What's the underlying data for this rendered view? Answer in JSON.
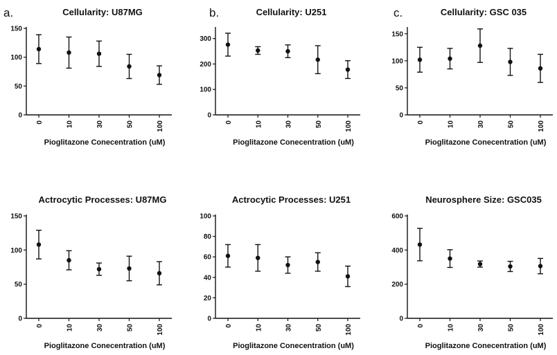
{
  "chart_data": [
    {
      "type": "scatter",
      "panel_label": "a.",
      "title": "Cellularity: U87MG",
      "xlabel": "Pioglitazone Conecentration (uM)",
      "ylabel": "",
      "categories": [
        "0",
        "10",
        "30",
        "50",
        "100"
      ],
      "values": [
        114,
        108,
        106,
        84,
        69
      ],
      "errors": [
        25,
        27,
        22,
        21,
        16
      ],
      "ylim": [
        0,
        150
      ],
      "yticks": [
        0,
        50,
        100,
        150
      ]
    },
    {
      "type": "scatter",
      "panel_label": "b.",
      "title": "Cellularity: U251",
      "xlabel": "Pioglitazone Conecentration (uM)",
      "ylabel": "",
      "categories": [
        "0",
        "10",
        "30",
        "50",
        "100"
      ],
      "values": [
        276,
        253,
        250,
        217,
        178
      ],
      "errors": [
        45,
        15,
        25,
        55,
        35
      ],
      "ylim": [
        0,
        340
      ],
      "yticks": [
        0,
        100,
        200,
        300
      ]
    },
    {
      "type": "scatter",
      "panel_label": "c.",
      "title": "Cellularity: GSC 035",
      "xlabel": "Pioglitazone Conecentration (uM)",
      "ylabel": "",
      "categories": [
        "0",
        "10",
        "30",
        "50",
        "100"
      ],
      "values": [
        102,
        104,
        128,
        98,
        86
      ],
      "errors": [
        23,
        19,
        31,
        25,
        26
      ],
      "ylim": [
        0,
        160
      ],
      "yticks": [
        0,
        50,
        100,
        150
      ]
    },
    {
      "type": "scatter",
      "panel_label": "",
      "title": "Actrocytic Processes: U87MG",
      "xlabel": "Pioglitazone Conecentration (uM)",
      "ylabel": "",
      "categories": [
        "0",
        "10",
        "30",
        "50",
        "100"
      ],
      "values": [
        108,
        85,
        72,
        73,
        66
      ],
      "errors": [
        21,
        14,
        9,
        18,
        17
      ],
      "ylim": [
        0,
        150
      ],
      "yticks": [
        0,
        50,
        100,
        150
      ]
    },
    {
      "type": "scatter",
      "panel_label": "",
      "title": "Actrocytic Processes: U251",
      "xlabel": "Pioglitazone Conecentration (uM)",
      "ylabel": "",
      "categories": [
        "0",
        "10",
        "30",
        "50",
        "100"
      ],
      "values": [
        61,
        59,
        52,
        55,
        41
      ],
      "errors": [
        11,
        13,
        8,
        9,
        10
      ],
      "ylim": [
        0,
        100
      ],
      "yticks": [
        0,
        20,
        40,
        60,
        80,
        100
      ]
    },
    {
      "type": "scatter",
      "panel_label": "",
      "title": "Neurosphere Size: GSC035",
      "xlabel": "Pioglitazone Conecentration (uM)",
      "ylabel": "",
      "categories": [
        "0",
        "10",
        "30",
        "50",
        "100"
      ],
      "values": [
        432,
        350,
        318,
        304,
        306
      ],
      "errors": [
        95,
        52,
        18,
        30,
        45
      ],
      "ylim": [
        0,
        600
      ],
      "yticks": [
        0,
        200,
        400,
        600
      ]
    }
  ]
}
